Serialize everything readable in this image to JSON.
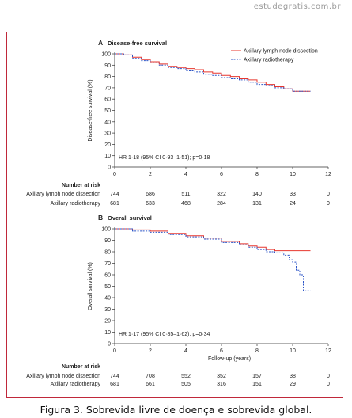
{
  "watermark": "estudegratis.com.br",
  "caption": "Figura 3. Sobrevida livre de doença e sobrevida global.",
  "chart_data": [
    {
      "type": "line",
      "panel_letter": "A",
      "title": "Disease-free survival",
      "ylabel": "Disease-free survival (%)",
      "xlabel": "",
      "xlim": [
        0,
        12
      ],
      "ylim": [
        0,
        100
      ],
      "x_ticks": [
        0,
        2,
        4,
        6,
        8,
        10,
        12
      ],
      "y_ticks": [
        0,
        10,
        20,
        30,
        40,
        50,
        60,
        70,
        80,
        90,
        100
      ],
      "legend_position": "top-right",
      "hr_text": "HR 1·18 (95% CI 0·93–1·51); p=0·18",
      "series": [
        {
          "name": "Axillary lymph node dissection",
          "color": "#e8372e",
          "style": "solid",
          "x": [
            0,
            0.5,
            1,
            1.5,
            2,
            2.5,
            3,
            3.5,
            4,
            4.5,
            5,
            5.5,
            6,
            6.5,
            7,
            7.5,
            8,
            8.5,
            9,
            9.5,
            10,
            10.5,
            11
          ],
          "y": [
            100,
            99,
            97,
            95,
            93,
            91,
            89,
            88,
            87,
            86,
            84,
            83,
            81,
            80,
            78,
            77,
            75,
            73,
            71,
            69,
            67,
            67,
            67
          ]
        },
        {
          "name": "Axillary radiotherapy",
          "color": "#2c55c7",
          "style": "dotted",
          "x": [
            0,
            0.5,
            1,
            1.5,
            2,
            2.5,
            3,
            3.5,
            4,
            4.5,
            5,
            5.5,
            6,
            6.5,
            7,
            7.5,
            8,
            8.5,
            9,
            9.5,
            10,
            10.5,
            11
          ],
          "y": [
            100,
            99,
            96,
            94,
            92,
            90,
            88,
            87,
            85,
            84,
            82,
            81,
            79,
            78,
            77,
            75,
            73,
            72,
            70,
            69,
            67,
            67,
            67
          ]
        }
      ],
      "risk_table": {
        "header": "Number at risk",
        "rows": [
          {
            "label": "Axillary lymph node dissection",
            "values": [
              "744",
              "686",
              "511",
              "322",
              "140",
              "33",
              "0"
            ]
          },
          {
            "label": "Axillary radiotherapy",
            "values": [
              "681",
              "633",
              "468",
              "284",
              "131",
              "24",
              "0"
            ]
          }
        ]
      }
    },
    {
      "type": "line",
      "panel_letter": "B",
      "title": "Overall survival",
      "ylabel": "Overall survival (%)",
      "xlabel": "Follow-up (years)",
      "xlim": [
        0,
        12
      ],
      "ylim": [
        0,
        100
      ],
      "x_ticks": [
        0,
        2,
        4,
        6,
        8,
        10,
        12
      ],
      "y_ticks": [
        0,
        10,
        20,
        30,
        40,
        50,
        60,
        70,
        80,
        90,
        100
      ],
      "hr_text": "HR 1·17 (95% CI 0·85–1·62); p=0·34",
      "series": [
        {
          "color": "#e8372e",
          "style": "solid",
          "x": [
            0,
            1,
            2,
            3,
            4,
            5,
            6,
            7,
            7.5,
            8,
            8.5,
            9,
            9.5,
            10,
            10.5,
            11
          ],
          "y": [
            100,
            99,
            98,
            96,
            94,
            92,
            89,
            87,
            85,
            84,
            82,
            81,
            81,
            81,
            81,
            81
          ]
        },
        {
          "color": "#2c55c7",
          "style": "dotted",
          "x": [
            0,
            1,
            2,
            3,
            4,
            5,
            6,
            7,
            7.5,
            8,
            8.5,
            9,
            9.5,
            9.8,
            10,
            10.2,
            10.4,
            10.6,
            10.8,
            11
          ],
          "y": [
            100,
            98,
            97,
            95,
            93,
            91,
            88,
            86,
            84,
            82,
            80,
            79,
            77,
            73,
            71,
            64,
            60,
            46,
            46,
            46
          ]
        }
      ],
      "risk_table": {
        "header": "Number at risk",
        "rows": [
          {
            "label": "Axillary lymph node dissection",
            "values": [
              "744",
              "708",
              "552",
              "352",
              "157",
              "38",
              "0"
            ]
          },
          {
            "label": "Axillary radiotherapy",
            "values": [
              "681",
              "661",
              "505",
              "316",
              "151",
              "29",
              "0"
            ]
          }
        ]
      }
    }
  ]
}
